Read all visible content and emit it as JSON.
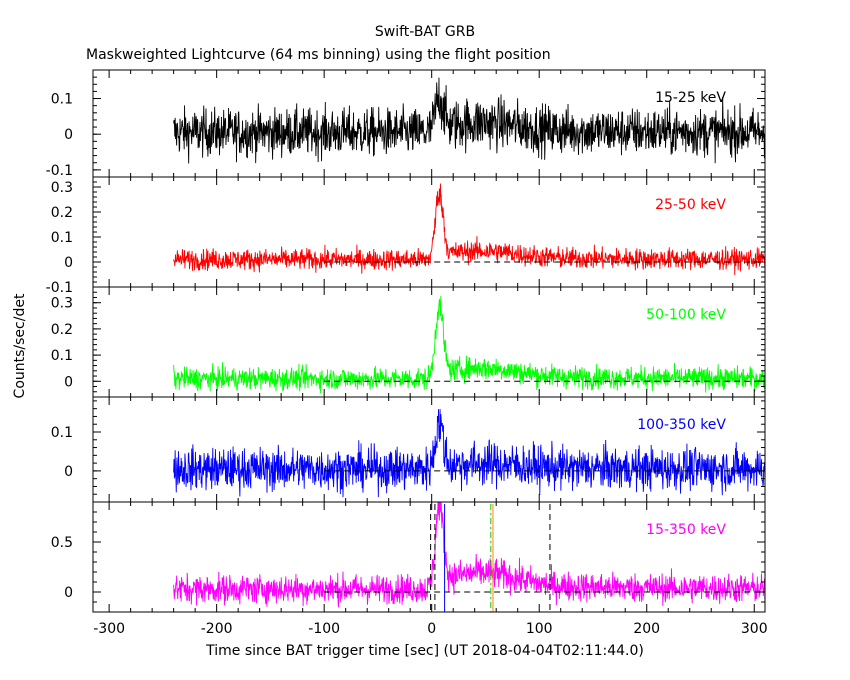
{
  "chart_data": {
    "type": "line",
    "title": "Swift-BAT GRB",
    "subtitle": "Maskweighted Lightcurve (64 ms binning) using the flight position",
    "xlabel": "Time since BAT trigger time [sec] (UT 2018-04-04T02:11:44.0)",
    "ylabel": "Counts/sec/det",
    "xlim": [
      -315,
      310
    ],
    "x_ticks": [
      -300,
      -200,
      -100,
      0,
      100,
      200,
      300
    ],
    "grid": false,
    "data_x_range": [
      -240,
      310
    ],
    "panels": [
      {
        "name": "15-25 keV",
        "color": "#000000",
        "ylim": [
          -0.12,
          0.18
        ],
        "y_ticks": [
          -0.1,
          0,
          0.1
        ],
        "y_tick_labels": [
          "-0.1",
          "0",
          "0.1"
        ],
        "baseline": 0.005,
        "noise": 0.055,
        "peak": 0.1,
        "tail": 0.02,
        "zero_line": false
      },
      {
        "name": "25-50 keV",
        "color": "#ff0000",
        "ylim": [
          -0.1,
          0.34
        ],
        "y_ticks": [
          -0.1,
          0,
          0.1,
          0.2,
          0.3
        ],
        "y_tick_labels": [
          "-0.1",
          "0",
          "0.1",
          "0.2",
          "0.3"
        ],
        "baseline": 0.01,
        "noise": 0.035,
        "peak": 0.27,
        "tail": 0.025,
        "zero_line": true
      },
      {
        "name": "50-100 keV",
        "color": "#00ff00",
        "ylim": [
          -0.06,
          0.36
        ],
        "y_ticks": [
          0,
          0.1,
          0.2,
          0.3
        ],
        "y_tick_labels": [
          "0",
          "0.1",
          "0.2",
          "0.3"
        ],
        "baseline": 0.01,
        "noise": 0.035,
        "peak": 0.28,
        "tail": 0.03,
        "zero_line": true
      },
      {
        "name": "100-350 keV",
        "color": "#0000ff",
        "ylim": [
          -0.08,
          0.19
        ],
        "y_ticks": [
          0,
          0.1
        ],
        "y_tick_labels": [
          "0",
          "0.1"
        ],
        "baseline": 0.005,
        "noise": 0.045,
        "peak": 0.12,
        "tail": 0.01,
        "zero_line": true
      },
      {
        "name": "15-350 keV",
        "color": "#ff00ff",
        "ylim": [
          -0.2,
          0.9
        ],
        "y_ticks": [
          0,
          0.5
        ],
        "y_tick_labels": [
          "0",
          "0.5"
        ],
        "baseline": 0.03,
        "noise": 0.12,
        "peak": 0.85,
        "tail": 0.12,
        "zero_line": true
      }
    ],
    "markers": [
      {
        "x": -1,
        "color": "#000000",
        "style": "dash"
      },
      {
        "x": 3,
        "color": "#000000",
        "style": "dash"
      },
      {
        "x": 12,
        "color": "#0000ff",
        "style": "solid"
      },
      {
        "x": 55,
        "color": "#00cc00",
        "style": "dashdot"
      },
      {
        "x": 57,
        "color": "#ff8800",
        "style": "solid"
      },
      {
        "x": 110,
        "color": "#000000",
        "style": "dash"
      }
    ]
  }
}
